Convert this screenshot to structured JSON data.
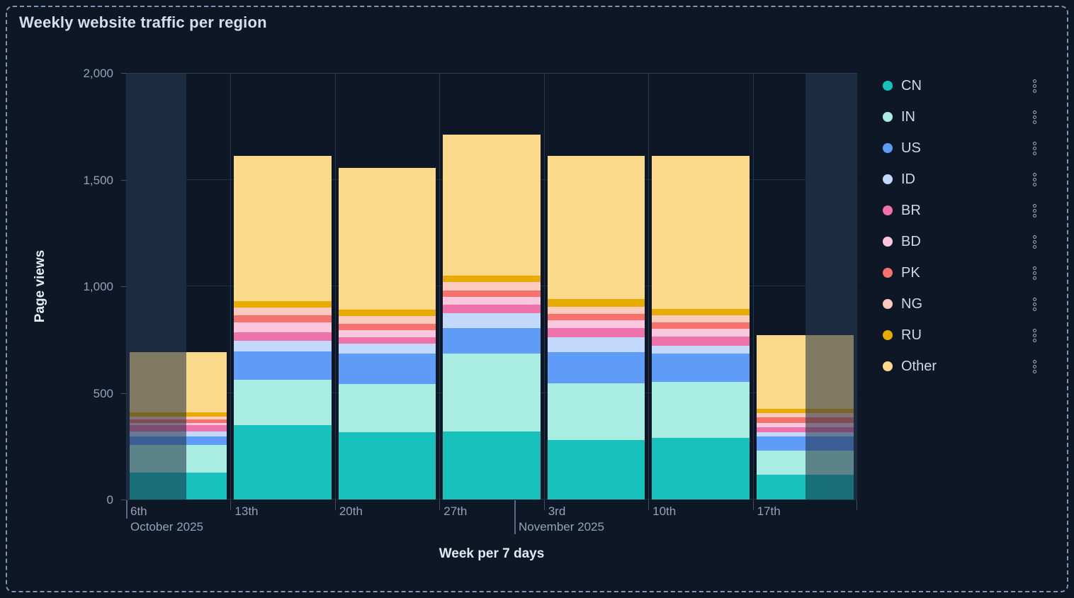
{
  "panel": {
    "title": "Weekly website traffic per region"
  },
  "y_axis": {
    "title": "Page views",
    "ticks": [
      {
        "value": 0,
        "label": "0"
      },
      {
        "value": 500,
        "label": "500"
      },
      {
        "value": 1000,
        "label": "1,000"
      },
      {
        "value": 1500,
        "label": "1,500"
      },
      {
        "value": 2000,
        "label": "2,000"
      }
    ]
  },
  "x_axis": {
    "title": "Week per 7 days",
    "week_labels": [
      "6th",
      "13th",
      "20th",
      "27th",
      "3rd",
      "10th",
      "17th"
    ],
    "month_labels": [
      "October 2025",
      "November 2025"
    ]
  },
  "legend": {
    "items": [
      {
        "label": "CN",
        "color": "#16c2bb"
      },
      {
        "label": "IN",
        "color": "#a9ece2"
      },
      {
        "label": "US",
        "color": "#5e9cf8"
      },
      {
        "label": "ID",
        "color": "#c3d9fb"
      },
      {
        "label": "BR",
        "color": "#ef72ab"
      },
      {
        "label": "BD",
        "color": "#fbc7dd"
      },
      {
        "label": "PK",
        "color": "#f5736c"
      },
      {
        "label": "NG",
        "color": "#fcc9bd"
      },
      {
        "label": "RU",
        "color": "#e8ab00"
      },
      {
        "label": "Other",
        "color": "#fbd98b"
      }
    ],
    "kebab_icon": "series-options-kebab"
  },
  "chart_data": {
    "type": "bar",
    "stacked": true,
    "title": "Weekly website traffic per region",
    "xlabel": "Week per 7 days",
    "ylabel": "Page views",
    "ylim": [
      0,
      2000
    ],
    "grid": true,
    "legend_position": "right",
    "categories": [
      "6th",
      "13th",
      "20th",
      "27th",
      "3rd",
      "10th",
      "17th"
    ],
    "category_months": [
      "October 2025",
      "October 2025",
      "October 2025",
      "October 2025",
      "November 2025",
      "November 2025",
      "November 2025"
    ],
    "series": [
      {
        "name": "CN",
        "color": "#16c2bb",
        "values": [
          125,
          350,
          315,
          320,
          280,
          290,
          115
        ]
      },
      {
        "name": "IN",
        "color": "#a9ece2",
        "values": [
          130,
          210,
          225,
          365,
          265,
          260,
          115
        ]
      },
      {
        "name": "US",
        "color": "#5e9cf8",
        "values": [
          40,
          135,
          145,
          120,
          145,
          135,
          65
        ]
      },
      {
        "name": "ID",
        "color": "#c3d9fb",
        "values": [
          25,
          50,
          45,
          70,
          70,
          35,
          20
        ]
      },
      {
        "name": "BR",
        "color": "#ef72ab",
        "values": [
          30,
          40,
          30,
          40,
          45,
          45,
          25
        ]
      },
      {
        "name": "BD",
        "color": "#fbc7dd",
        "values": [
          10,
          45,
          35,
          35,
          35,
          35,
          20
        ]
      },
      {
        "name": "PK",
        "color": "#f5736c",
        "values": [
          15,
          35,
          30,
          30,
          30,
          30,
          25
        ]
      },
      {
        "name": "NG",
        "color": "#fcc9bd",
        "values": [
          15,
          35,
          35,
          40,
          35,
          35,
          20
        ]
      },
      {
        "name": "RU",
        "color": "#e8ab00",
        "values": [
          20,
          30,
          30,
          30,
          35,
          30,
          20
        ]
      },
      {
        "name": "Other",
        "color": "#fbd98b",
        "values": [
          280,
          680,
          665,
          660,
          670,
          715,
          345
        ]
      }
    ],
    "totals": [
      690,
      1610,
      1555,
      1710,
      1610,
      1610,
      770
    ],
    "faded_edge_columns": [
      0,
      6
    ]
  }
}
